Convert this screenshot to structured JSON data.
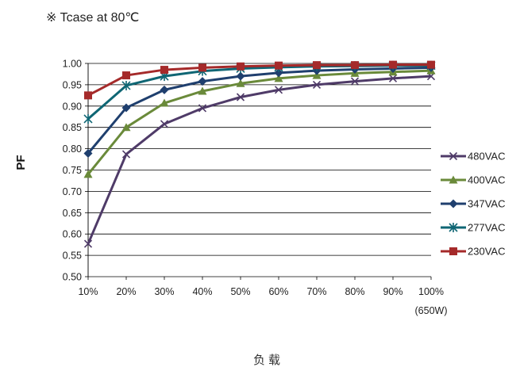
{
  "note": "※ Tcase at 80℃",
  "chart_data": {
    "type": "line",
    "ylabel": "PF",
    "xlabel": "负载",
    "x_ticks": [
      "10%",
      "20%",
      "30%",
      "40%",
      "50%",
      "60%",
      "70%",
      "80%",
      "90%",
      "100%"
    ],
    "x_subnote": "(650W)",
    "y_ticks": [
      "0.50",
      "0.55",
      "0.60",
      "0.65",
      "0.70",
      "0.75",
      "0.80",
      "0.85",
      "0.90",
      "0.95",
      "1.00"
    ],
    "ylim": [
      0.5,
      1.0
    ],
    "grid": true,
    "legend_position": "right",
    "series": [
      {
        "name": "480VAC",
        "color": "#4f3b68",
        "marker": "x",
        "values": [
          0.577,
          0.787,
          0.858,
          0.895,
          0.921,
          0.938,
          0.95,
          0.958,
          0.965,
          0.97
        ]
      },
      {
        "name": "400VAC",
        "color": "#6a8a3a",
        "marker": "triangle",
        "values": [
          0.74,
          0.85,
          0.907,
          0.935,
          0.953,
          0.965,
          0.972,
          0.977,
          0.98,
          0.983
        ]
      },
      {
        "name": "347VAC",
        "color": "#1f3f6e",
        "marker": "diamond",
        "values": [
          0.789,
          0.896,
          0.938,
          0.958,
          0.97,
          0.978,
          0.983,
          0.986,
          0.988,
          0.99
        ]
      },
      {
        "name": "277VAC",
        "color": "#0f6674",
        "marker": "star",
        "values": [
          0.87,
          0.948,
          0.97,
          0.982,
          0.988,
          0.991,
          0.993,
          0.994,
          0.995,
          0.995
        ]
      },
      {
        "name": "230VAC",
        "color": "#a52a2a",
        "marker": "square",
        "values": [
          0.925,
          0.972,
          0.985,
          0.99,
          0.993,
          0.995,
          0.996,
          0.996,
          0.997,
          0.997
        ]
      }
    ]
  }
}
